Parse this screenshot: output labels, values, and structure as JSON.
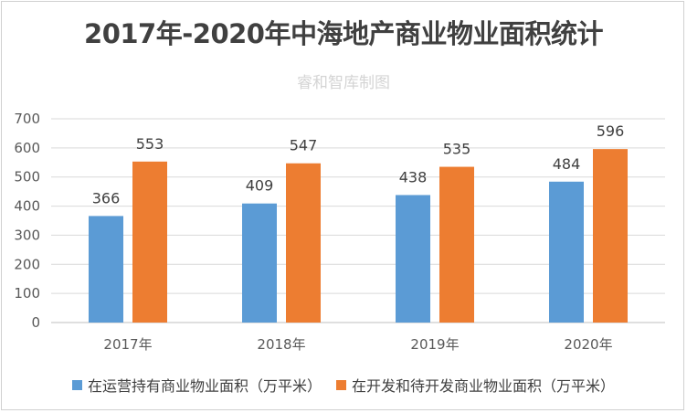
{
  "chart_data": {
    "type": "bar",
    "title": "2017年-2020年中海地产商业物业面积统计",
    "subtitle": "睿和智库制图",
    "categories": [
      "2017年",
      "2018年",
      "2019年",
      "2020年"
    ],
    "series": [
      {
        "name": "在运营持有商业物业面积（万平米）",
        "color": "#5b9bd5",
        "values": [
          366,
          409,
          438,
          484
        ]
      },
      {
        "name": "在开发和待开发商业物业面积（万平米）",
        "color": "#ed7d31",
        "values": [
          553,
          547,
          535,
          596
        ]
      }
    ],
    "ylim": [
      0,
      700
    ],
    "yticks": [
      0,
      100,
      200,
      300,
      400,
      500,
      600,
      700
    ],
    "grid": true,
    "legend_position": "bottom",
    "xlabel": "",
    "ylabel": ""
  }
}
